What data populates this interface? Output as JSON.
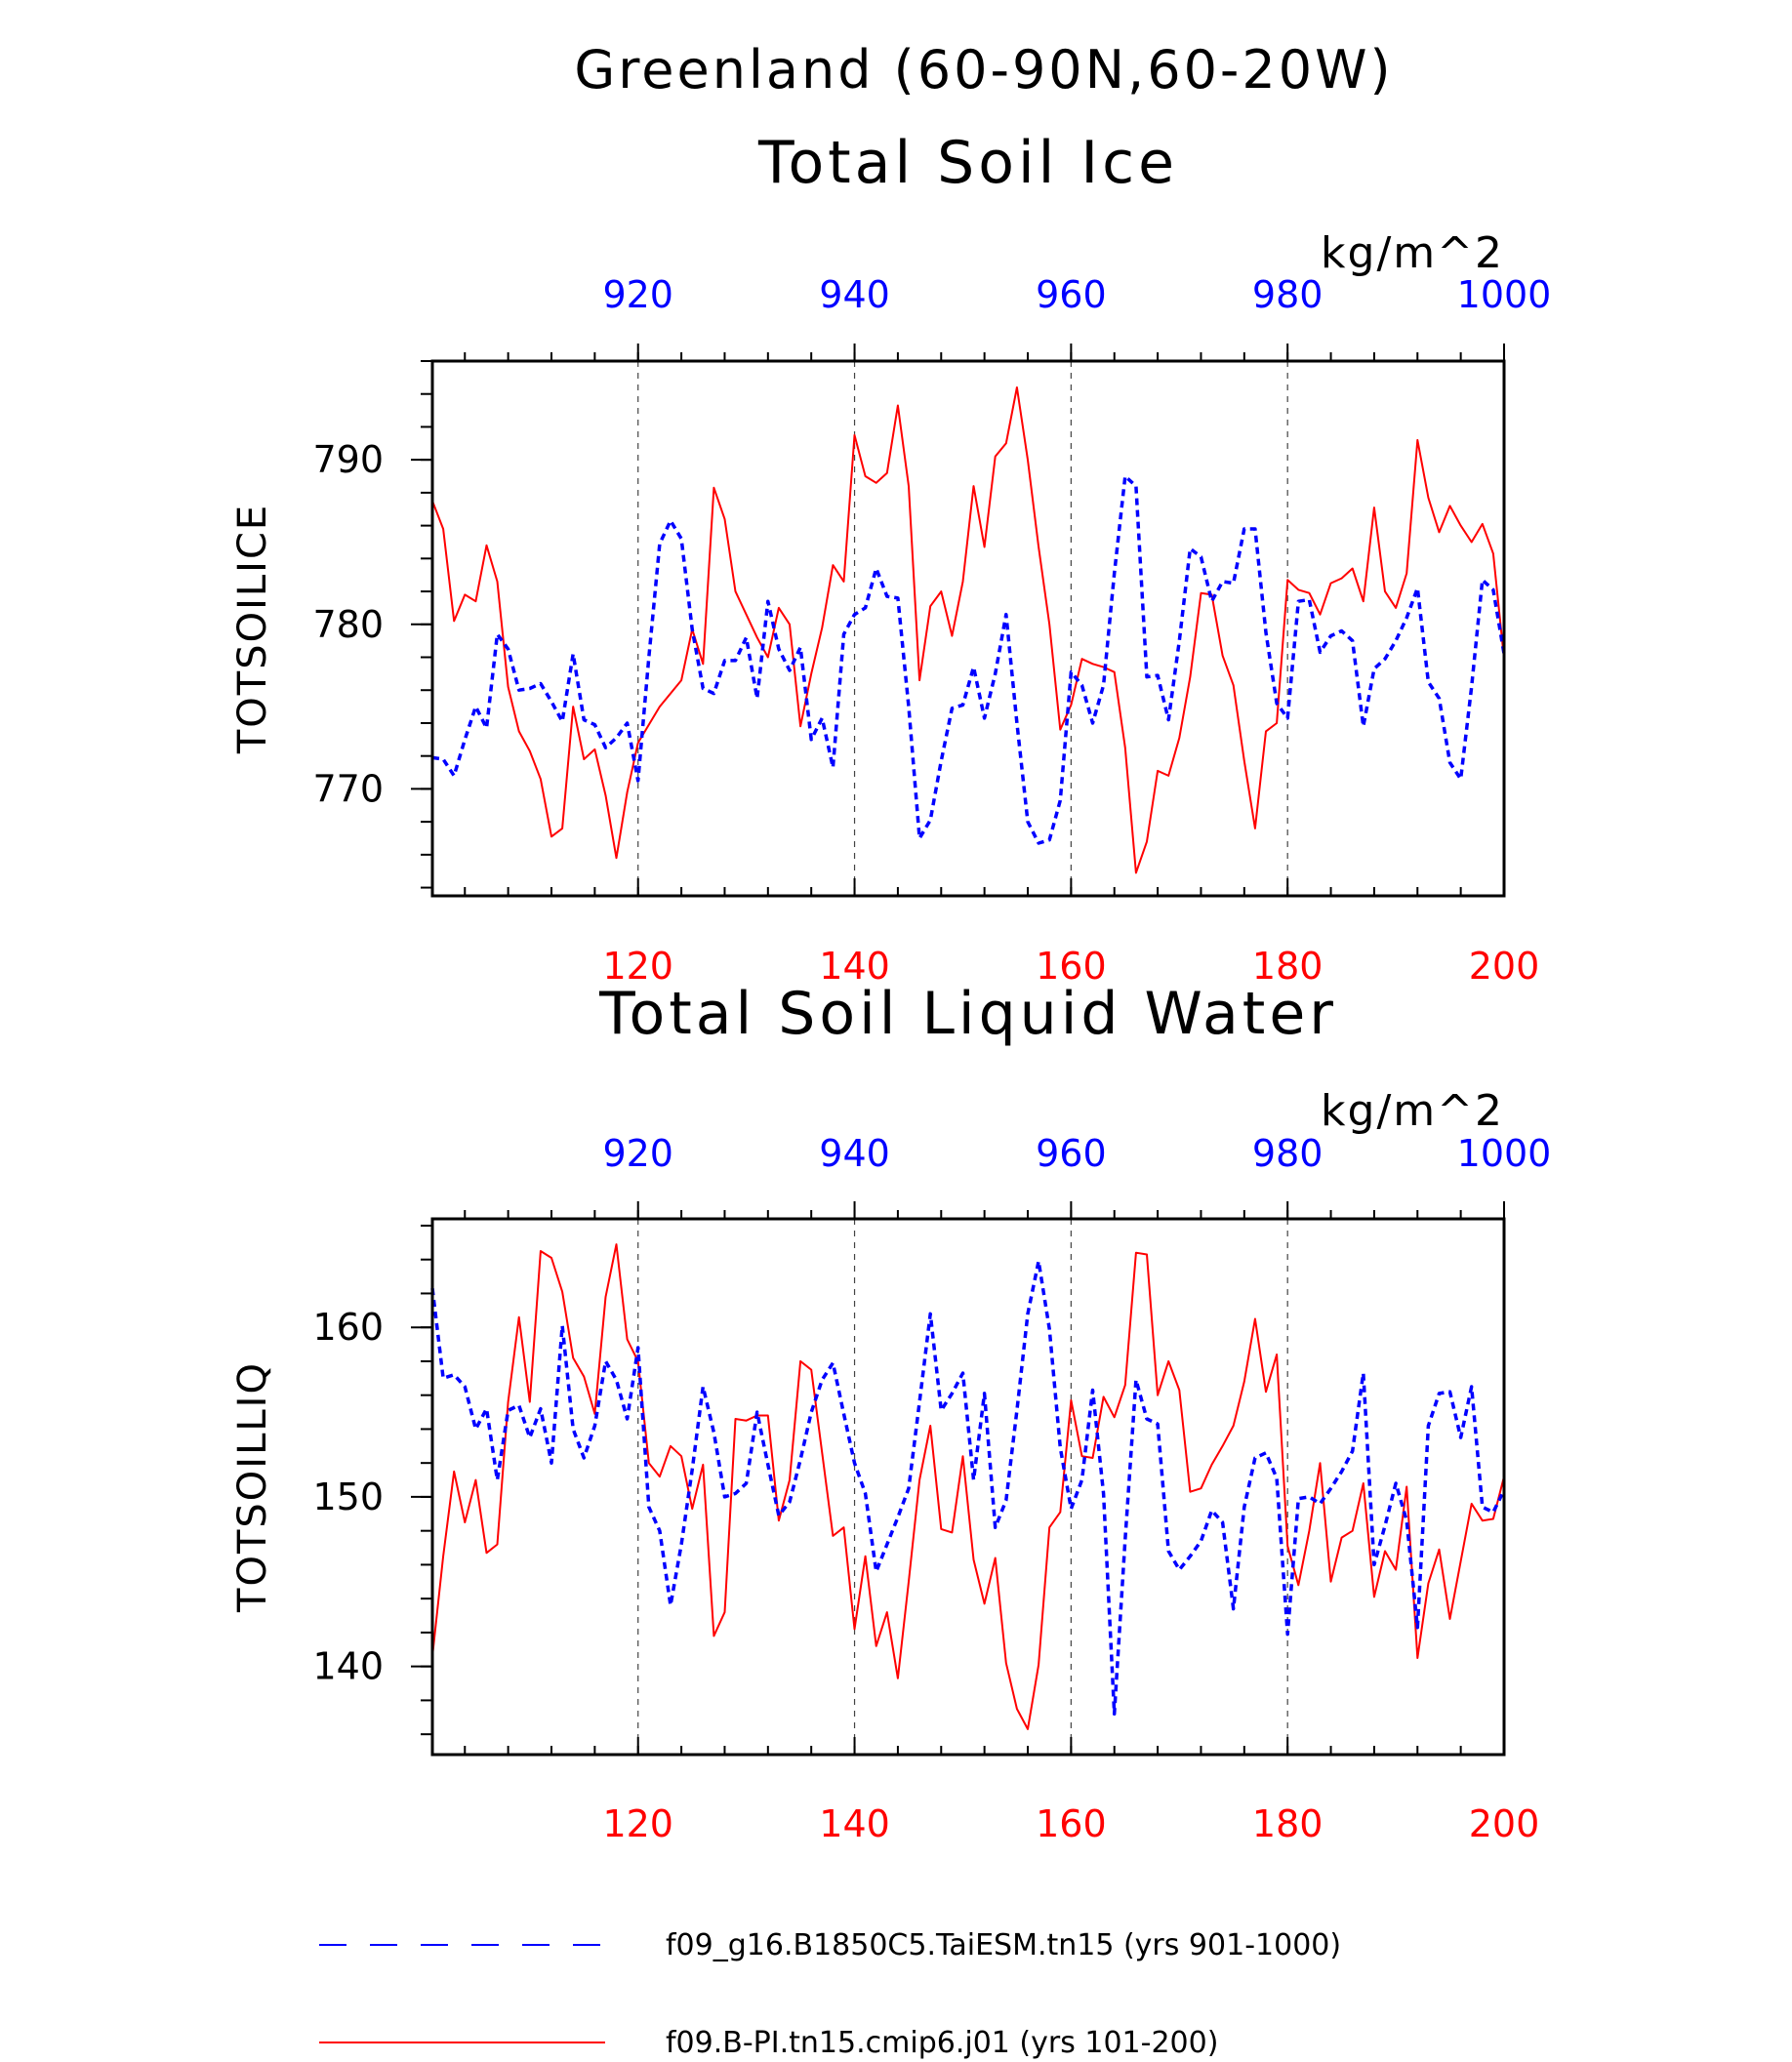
{
  "figure": {
    "title": "Greenland (60-90N,60-20W)"
  },
  "colors": {
    "blue_series": "#0000ff",
    "red_series": "#ff0000",
    "axis": "#000000",
    "grid": "#444444"
  },
  "legend": {
    "placement": "bottom",
    "items": [
      {
        "label": "f09_g16.B1850C5.TaiESM.tn15 (yrs 901-1000)",
        "color": "#0000ff",
        "style": "dashed"
      },
      {
        "label": "f09.B-PI.tn15.cmip6.j01 (yrs 101-200)",
        "color": "#ff0000",
        "style": "solid"
      }
    ]
  },
  "chart_data": [
    {
      "type": "line",
      "title": "Total Soil Ice",
      "ylabel": "TOTSOILICE",
      "units": "kg/m^2",
      "ylim": [
        763.5,
        796
      ],
      "yticks": [
        770,
        780,
        790
      ],
      "y_minor_step": 2,
      "x_bottom": {
        "lim": [
          101,
          200
        ],
        "ticks": [
          120,
          140,
          160,
          180,
          200
        ],
        "color": "#ff0000",
        "minor_step": 4
      },
      "x_top": {
        "lim": [
          901,
          1000
        ],
        "ticks": [
          920,
          940,
          960,
          980,
          1000
        ],
        "color": "#0000ff",
        "minor_step": 4
      },
      "grid": "dashed vertical lines at major x ticks",
      "series": [
        {
          "axis": "bottom",
          "color": "#ff0000",
          "style": "solid",
          "x": [
            101,
            102,
            103,
            104,
            105,
            106,
            107,
            108,
            109,
            110,
            111,
            112,
            113,
            114,
            115,
            116,
            117,
            118,
            119,
            120,
            121,
            122,
            123,
            124,
            125,
            126,
            127,
            128,
            129,
            130,
            131,
            132,
            133,
            134,
            135,
            136,
            137,
            138,
            139,
            140,
            141,
            142,
            143,
            144,
            145,
            146,
            147,
            148,
            149,
            150,
            151,
            152,
            153,
            154,
            155,
            156,
            157,
            158,
            159,
            160,
            161,
            162,
            163,
            164,
            165,
            166,
            167,
            168,
            169,
            170,
            171,
            172,
            173,
            174,
            175,
            176,
            177,
            178,
            179,
            180,
            181,
            182,
            183,
            184,
            185,
            186,
            187,
            188,
            189,
            190,
            191,
            192,
            193,
            194,
            195,
            196,
            197,
            198,
            199,
            200
          ],
          "y": [
            787.5,
            785.8,
            780.2,
            781.8,
            781.4,
            784.8,
            782.6,
            776.2,
            773.5,
            772.3,
            770.6,
            767.1,
            767.6,
            775.0,
            771.8,
            772.4,
            769.6,
            765.8,
            769.8,
            772.8,
            773.9,
            775.0,
            775.8,
            776.6,
            779.7,
            777.6,
            788.3,
            786.4,
            782.0,
            780.6,
            779.2,
            778.0,
            781.0,
            780.0,
            773.8,
            777.0,
            779.8,
            783.6,
            782.6,
            791.5,
            789.0,
            788.6,
            789.2,
            793.3,
            788.4,
            776.6,
            781.1,
            782.0,
            779.3,
            782.6,
            788.4,
            784.7,
            790.2,
            791.0,
            794.4,
            790.0,
            784.7,
            780.0,
            773.6,
            775.1,
            777.9,
            777.6,
            777.4,
            777.1,
            772.5,
            764.9,
            766.8,
            771.1,
            770.8,
            773.1,
            776.8,
            781.9,
            781.8,
            778.1,
            776.3,
            771.7,
            767.6,
            773.5,
            774.0,
            782.7,
            782.1,
            781.9,
            780.6,
            782.5,
            782.8,
            783.4,
            781.4,
            787.1,
            782.0,
            781.0,
            783.1,
            791.2,
            787.7,
            785.6,
            787.2,
            786.0,
            785.0,
            786.1,
            784.3,
            777.9
          ]
        },
        {
          "axis": "top",
          "color": "#0000ff",
          "style": "dashed",
          "x": [
            901,
            902,
            903,
            904,
            905,
            906,
            907,
            908,
            909,
            910,
            911,
            912,
            913,
            914,
            915,
            916,
            917,
            918,
            919,
            920,
            921,
            922,
            923,
            924,
            925,
            926,
            927,
            928,
            929,
            930,
            931,
            932,
            933,
            934,
            935,
            936,
            937,
            938,
            939,
            940,
            941,
            942,
            943,
            944,
            945,
            946,
            947,
            948,
            949,
            950,
            951,
            952,
            953,
            954,
            955,
            956,
            957,
            958,
            959,
            960,
            961,
            962,
            963,
            964,
            965,
            966,
            967,
            968,
            969,
            970,
            971,
            972,
            973,
            974,
            975,
            976,
            977,
            978,
            979,
            980,
            981,
            982,
            983,
            984,
            985,
            986,
            987,
            988,
            989,
            990,
            991,
            992,
            993,
            994,
            995,
            996,
            997,
            998,
            999,
            1000
          ],
          "y": [
            771.9,
            771.8,
            770.8,
            773.0,
            775.0,
            773.7,
            779.4,
            778.5,
            776.0,
            776.1,
            776.4,
            775.3,
            774.1,
            778.2,
            774.2,
            773.9,
            772.5,
            773.1,
            774.0,
            770.5,
            778.0,
            784.9,
            786.3,
            785.2,
            779.7,
            776.1,
            775.8,
            777.8,
            777.8,
            779.2,
            775.5,
            781.4,
            778.5,
            777.2,
            778.6,
            773.0,
            774.3,
            771.3,
            779.4,
            780.6,
            781.0,
            783.4,
            781.7,
            781.6,
            775.0,
            767.0,
            768.1,
            771.7,
            774.9,
            775.1,
            777.4,
            774.3,
            777.0,
            780.6,
            774.0,
            768.0,
            766.7,
            766.9,
            769.3,
            777.1,
            776.3,
            774.0,
            776.3,
            783.1,
            789.0,
            788.4,
            776.8,
            776.9,
            774.2,
            779.0,
            784.6,
            784.1,
            781.4,
            782.6,
            782.5,
            785.8,
            785.8,
            779.5,
            775.2,
            774.3,
            781.4,
            781.5,
            778.3,
            779.3,
            779.6,
            779.0,
            773.8,
            777.3,
            777.9,
            779.0,
            780.4,
            782.2,
            776.5,
            775.5,
            771.6,
            770.6,
            776.2,
            782.7,
            782.1,
            778.2
          ]
        }
      ]
    },
    {
      "type": "line",
      "title": "Total Soil Liquid Water",
      "ylabel": "TOTSOILLIQ",
      "units": "kg/m^2",
      "ylim": [
        134.8,
        166.4
      ],
      "yticks": [
        140,
        150,
        160
      ],
      "y_minor_step": 2,
      "x_bottom": {
        "lim": [
          101,
          200
        ],
        "ticks": [
          120,
          140,
          160,
          180,
          200
        ],
        "color": "#ff0000",
        "minor_step": 4
      },
      "x_top": {
        "lim": [
          901,
          1000
        ],
        "ticks": [
          920,
          940,
          960,
          980,
          1000
        ],
        "color": "#0000ff",
        "minor_step": 4
      },
      "grid": "dashed vertical lines at major x ticks",
      "series": [
        {
          "axis": "bottom",
          "color": "#ff0000",
          "style": "solid",
          "x": [
            101,
            102,
            103,
            104,
            105,
            106,
            107,
            108,
            109,
            110,
            111,
            112,
            113,
            114,
            115,
            116,
            117,
            118,
            119,
            120,
            121,
            122,
            123,
            124,
            125,
            126,
            127,
            128,
            129,
            130,
            131,
            132,
            133,
            134,
            135,
            136,
            137,
            138,
            139,
            140,
            141,
            142,
            143,
            144,
            145,
            146,
            147,
            148,
            149,
            150,
            151,
            152,
            153,
            154,
            155,
            156,
            157,
            158,
            159,
            160,
            161,
            162,
            163,
            164,
            165,
            166,
            167,
            168,
            169,
            170,
            171,
            172,
            173,
            174,
            175,
            176,
            177,
            178,
            179,
            180,
            181,
            182,
            183,
            184,
            185,
            186,
            187,
            188,
            189,
            190,
            191,
            192,
            193,
            194,
            195,
            196,
            197,
            198,
            199,
            200
          ],
          "y": [
            140.6,
            146.5,
            151.5,
            148.5,
            151.0,
            146.7,
            147.2,
            155.6,
            160.6,
            155.6,
            164.5,
            164.1,
            162.1,
            158.2,
            157.1,
            154.9,
            161.8,
            164.9,
            159.3,
            158.0,
            152.0,
            151.2,
            153.0,
            152.4,
            149.3,
            151.9,
            141.8,
            143.2,
            154.6,
            154.5,
            154.8,
            154.8,
            148.6,
            151.0,
            158.0,
            157.5,
            152.6,
            147.7,
            148.2,
            142.2,
            146.5,
            141.2,
            143.2,
            139.3,
            145.0,
            151.0,
            154.2,
            148.1,
            147.9,
            152.4,
            146.3,
            143.7,
            146.4,
            140.2,
            137.5,
            136.3,
            140.1,
            148.2,
            149.1,
            155.7,
            152.4,
            152.3,
            155.9,
            154.7,
            156.6,
            164.4,
            164.3,
            156.0,
            158.0,
            156.3,
            150.3,
            150.5,
            151.9,
            153.0,
            154.2,
            156.8,
            160.5,
            156.2,
            158.4,
            147.1,
            144.8,
            148.0,
            152.0,
            145.0,
            147.6,
            148.0,
            150.8,
            144.1,
            146.8,
            145.7,
            150.6,
            140.5,
            144.9,
            146.9,
            142.8,
            146.2,
            149.6,
            148.6,
            148.7,
            151.2
          ]
        },
        {
          "axis": "top",
          "color": "#0000ff",
          "style": "dashed",
          "x": [
            901,
            902,
            903,
            904,
            905,
            906,
            907,
            908,
            909,
            910,
            911,
            912,
            913,
            914,
            915,
            916,
            917,
            918,
            919,
            920,
            921,
            922,
            923,
            924,
            925,
            926,
            927,
            928,
            929,
            930,
            931,
            932,
            933,
            934,
            935,
            936,
            937,
            938,
            939,
            940,
            941,
            942,
            943,
            944,
            945,
            946,
            947,
            948,
            949,
            950,
            951,
            952,
            953,
            954,
            955,
            956,
            957,
            958,
            959,
            960,
            961,
            962,
            963,
            964,
            965,
            966,
            967,
            968,
            969,
            970,
            971,
            972,
            973,
            974,
            975,
            976,
            977,
            978,
            979,
            980,
            981,
            982,
            983,
            984,
            985,
            986,
            987,
            988,
            989,
            990,
            991,
            992,
            993,
            994,
            995,
            996,
            997,
            998,
            999,
            1000
          ],
          "y": [
            162.3,
            157.0,
            157.2,
            156.5,
            154.0,
            155.2,
            151.0,
            155.1,
            155.4,
            153.5,
            155.2,
            152.0,
            160.1,
            154.0,
            152.3,
            154.2,
            158.0,
            156.9,
            154.6,
            158.8,
            149.4,
            148.0,
            143.6,
            147.2,
            151.6,
            156.5,
            153.8,
            150.0,
            150.2,
            150.8,
            155.0,
            151.9,
            148.9,
            149.7,
            152.2,
            155.0,
            156.9,
            157.9,
            154.9,
            152.0,
            150.2,
            145.6,
            147.2,
            148.8,
            150.5,
            155.6,
            160.8,
            155.1,
            156.1,
            157.3,
            151.0,
            156.1,
            148.2,
            149.8,
            155.1,
            160.8,
            163.9,
            159.9,
            152.9,
            149.3,
            151.0,
            156.3,
            150.2,
            137.2,
            147.5,
            156.9,
            154.6,
            154.3,
            146.8,
            145.7,
            146.5,
            147.4,
            149.2,
            148.5,
            143.4,
            149.4,
            152.3,
            152.6,
            151.1,
            141.9,
            149.9,
            150.0,
            149.6,
            150.5,
            151.5,
            152.7,
            157.3,
            146.0,
            148.3,
            150.8,
            148.6,
            142.3,
            154.2,
            156.1,
            156.2,
            153.5,
            156.5,
            149.4,
            149.1,
            150.4
          ]
        }
      ]
    }
  ]
}
